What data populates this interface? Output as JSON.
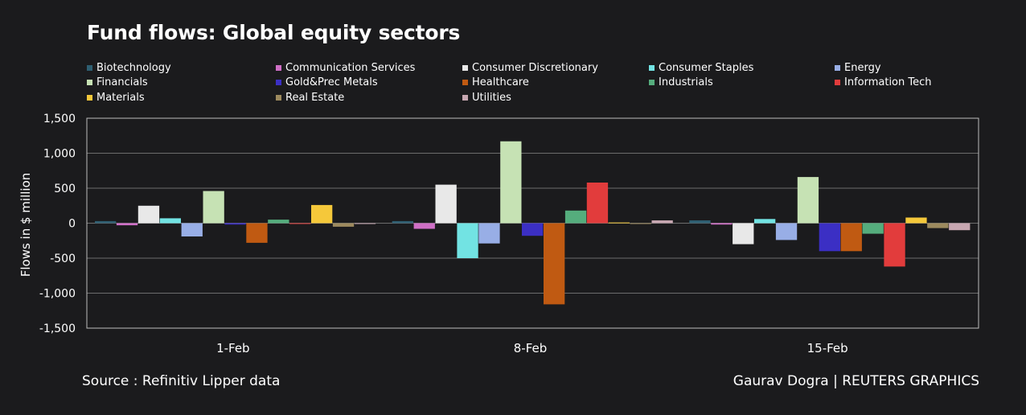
{
  "title": "Fund flows: Global equity sectors",
  "footer": {
    "source": "Source : Refinitiv Lipper data",
    "credit": "Gaurav Dogra | REUTERS GRAPHICS"
  },
  "chart_data": {
    "type": "bar",
    "title": "Fund flows: Global equity sectors",
    "ylabel": "Flows in $ million",
    "xlabel": "",
    "ylim": [
      -1500,
      1500
    ],
    "yticks": [
      1500,
      1000,
      500,
      0,
      -500,
      -1000,
      -1500
    ],
    "ytick_labels": [
      "1,500",
      "1,000",
      "500",
      "0",
      "-500",
      "-1,000",
      "-1,500"
    ],
    "grid": true,
    "legend_position": "top",
    "categories": [
      "1-Feb",
      "8-Feb",
      "15-Feb"
    ],
    "series": [
      {
        "name": "Biotechnology",
        "color": "#2e5f72",
        "values": [
          30,
          30,
          40
        ]
      },
      {
        "name": "Communication Services",
        "color": "#cf6fc6",
        "values": [
          -30,
          -80,
          -20
        ]
      },
      {
        "name": "Consumer Discretionary",
        "color": "#e8e8e8",
        "values": [
          250,
          550,
          -300
        ]
      },
      {
        "name": "Consumer Staples",
        "color": "#72e3e3",
        "values": [
          70,
          -500,
          60
        ]
      },
      {
        "name": "Energy",
        "color": "#98aee6",
        "values": [
          -190,
          -290,
          -240
        ]
      },
      {
        "name": "Financials",
        "color": "#c6e2b4",
        "values": [
          460,
          1170,
          660
        ]
      },
      {
        "name": "Gold&Prec Metals",
        "color": "#3b2fc4",
        "values": [
          -20,
          -180,
          -400
        ]
      },
      {
        "name": "Healthcare",
        "color": "#c05a12",
        "values": [
          -280,
          -1160,
          -400
        ]
      },
      {
        "name": "Industrials",
        "color": "#55ad7d",
        "values": [
          50,
          180,
          -150
        ]
      },
      {
        "name": "Information Tech",
        "color": "#e23c3c",
        "values": [
          -10,
          580,
          -620
        ]
      },
      {
        "name": "Materials",
        "color": "#f5c83a",
        "values": [
          260,
          10,
          80
        ]
      },
      {
        "name": "Real Estate",
        "color": "#9d8a5e",
        "values": [
          -50,
          -10,
          -70
        ]
      },
      {
        "name": "Utilities",
        "color": "#c7a7b1",
        "values": [
          -10,
          40,
          -100
        ]
      }
    ]
  }
}
